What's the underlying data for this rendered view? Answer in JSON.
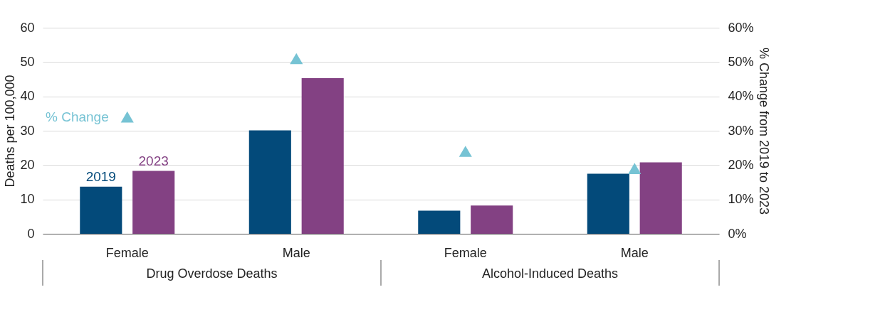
{
  "chart_data": {
    "type": "bar",
    "categories": [
      "Female",
      "Male",
      "Female",
      "Male"
    ],
    "series": [
      {
        "name": "2019",
        "color": "#034a7a",
        "values": [
          13.7,
          30.1,
          6.7,
          17.5
        ]
      },
      {
        "name": "2023",
        "color": "#834183",
        "values": [
          18.3,
          45.3,
          8.2,
          20.8
        ]
      },
      {
        "name": "% Change",
        "type": "scatter",
        "axis": "y2",
        "color": "#76c3d4",
        "values": [
          34,
          51,
          24,
          19
        ]
      }
    ],
    "ylabel": "Deaths per 100,000",
    "y2label": "% Change from 2019 to 2023",
    "ylim": [
      0,
      60
    ],
    "yticks": [
      0,
      10,
      20,
      30,
      40,
      50,
      60
    ],
    "y2lim": [
      0,
      60
    ],
    "y2ticks": [
      {
        "value": 0,
        "label": "0%"
      },
      {
        "value": 10,
        "label": "10%"
      },
      {
        "value": 20,
        "label": "20%"
      },
      {
        "value": 30,
        "label": "30%"
      },
      {
        "value": 40,
        "label": "40%"
      },
      {
        "value": 50,
        "label": "50%"
      },
      {
        "value": 60,
        "label": "60%"
      }
    ],
    "annotations": [
      "Drug Overdose Deaths",
      "Alcohol-Induced Deaths"
    ],
    "grid": "y",
    "marker": "triangle"
  }
}
